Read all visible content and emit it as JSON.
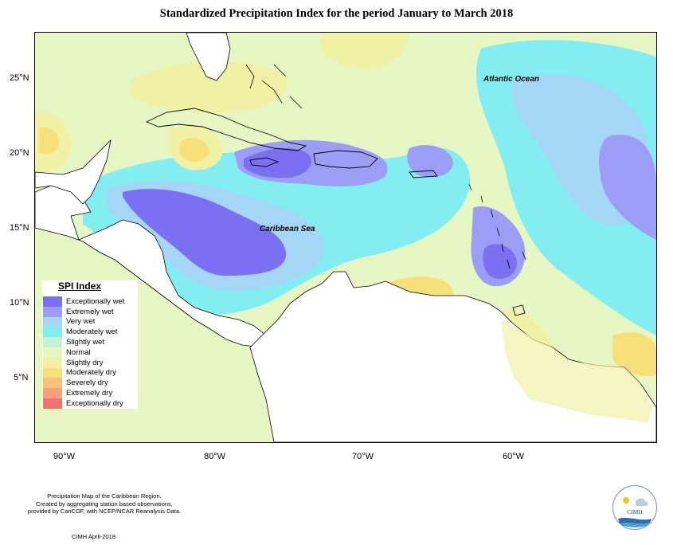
{
  "title": "Standardized Precipitation Index for the period January to March 2018",
  "map": {
    "lat_ticks": [
      "25°N",
      "20°N",
      "15°N",
      "10°N",
      "5°N"
    ],
    "lon_ticks": [
      "90°W",
      "80°W",
      "70°W",
      "60°W"
    ],
    "labels": {
      "atlantic": "Atlantic Ocean",
      "caribbean": "Caribbean Sea"
    }
  },
  "legend": {
    "title": "SPI Index",
    "items": [
      {
        "label": "Exceptionally wet",
        "color": "#7b6ff2"
      },
      {
        "label": "Extremely wet",
        "color": "#9c9ef5"
      },
      {
        "label": "Very wet",
        "color": "#a6d6f5"
      },
      {
        "label": "Moderately wet",
        "color": "#82eef2"
      },
      {
        "label": "Slightly wet",
        "color": "#c4f2d8"
      },
      {
        "label": "Normal",
        "color": "#e6f7c4"
      },
      {
        "label": "Slightly dry",
        "color": "#f1f1a6"
      },
      {
        "label": "Moderately dry",
        "color": "#f7e07a"
      },
      {
        "label": "Severely dry",
        "color": "#f7c27b"
      },
      {
        "label": "Extremely dry",
        "color": "#f7a07b"
      },
      {
        "label": "Exceptionally dry",
        "color": "#f27272"
      }
    ]
  },
  "footer": {
    "line1": "Precipitation Map of the Caribbean Region.",
    "line2": "Created by aggregating station based observations,",
    "line3": "provided by CariCOF, with NCEP/NCAR Reanalysis Data.",
    "credit": "CIMH April-2018"
  },
  "logo": {
    "text": "CIMH"
  }
}
